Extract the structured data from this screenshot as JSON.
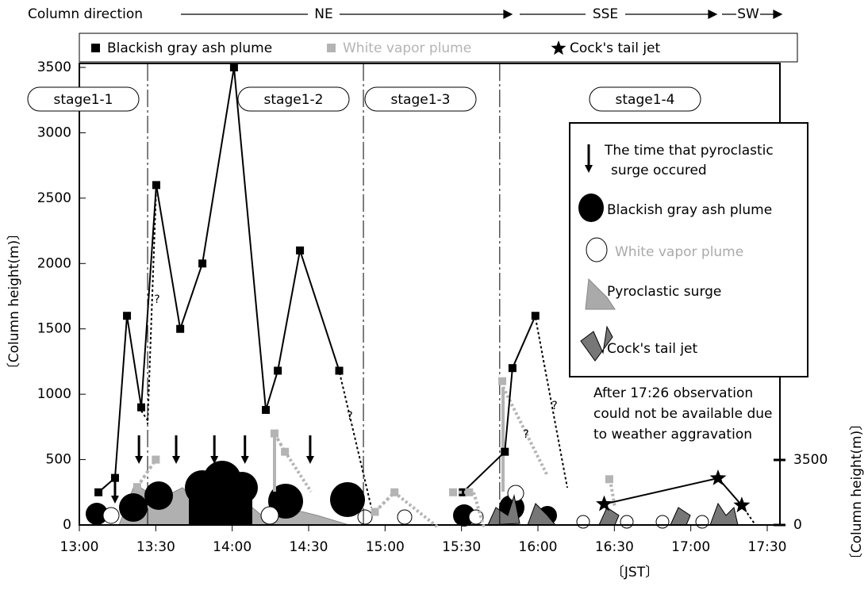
{
  "chart_data": {
    "type": "line",
    "top_label": "Column direction",
    "directions": [
      "NE",
      "SSE",
      "SW"
    ],
    "x_label": "〔JST〕",
    "y_label": "〔Column height(m)〕",
    "y2_label": "〔Column height(m)〕",
    "xlim": [
      0,
      270
    ],
    "xticks": [
      {
        "value": 0,
        "label": "13:00"
      },
      {
        "value": 30,
        "label": "13:30"
      },
      {
        "value": 60,
        "label": "14:00"
      },
      {
        "value": 90,
        "label": "14:30"
      },
      {
        "value": 120,
        "label": "15:00"
      },
      {
        "value": 150,
        "label": "15:30"
      },
      {
        "value": 180,
        "label": "16:00"
      },
      {
        "value": 210,
        "label": "16:30"
      },
      {
        "value": 240,
        "label": "17:00"
      },
      {
        "value": 270,
        "label": "17:30"
      }
    ],
    "ylim": [
      0,
      3500
    ],
    "yticks": [
      0,
      500,
      1000,
      1500,
      2000,
      2500,
      3000,
      3500
    ],
    "y2lim": [
      0,
      3500
    ],
    "y2ticks": [
      0,
      3500
    ],
    "series": [
      {
        "name": "Blackish gray ash plume",
        "color": "#000000",
        "x": [
          7.5,
          14,
          18.7,
          24.3,
          30.2,
          39.6,
          48.3,
          60.7,
          73.2,
          77.9,
          86.6,
          102,
          null,
          150.5,
          167,
          170,
          179
        ],
        "values": [
          250,
          360,
          1600,
          900,
          2600,
          1500,
          2000,
          3500,
          880,
          1180,
          2100,
          1180,
          null,
          250,
          560,
          1200,
          1600
        ]
      },
      {
        "name": "White vapor plume",
        "color": "#b4b4b4",
        "x": [
          22.7,
          30,
          null,
          76.6,
          80.7,
          null,
          116,
          123.7,
          null,
          146.7,
          153,
          null,
          166,
          null,
          208
        ],
        "values": [
          290,
          500,
          null,
          700,
          560,
          null,
          100,
          250,
          null,
          250,
          250,
          null,
          1100,
          null,
          350
        ]
      },
      {
        "name": "Cock's tail jet",
        "color": "#000000",
        "x": [
          206,
          250.7,
          260
        ],
        "values": [
          160,
          358,
          150
        ]
      }
    ],
    "surge_times": [
      14,
      23.4,
      38,
      53,
      65,
      90.6
    ],
    "stage_boundaries": [
      26.8,
      111.5,
      165
    ],
    "stages": [
      "stage1-1",
      "stage1-2",
      "stage1-3",
      "stage1-4"
    ],
    "question_marks": [
      "?",
      "?",
      "?",
      "?"
    ],
    "legend2": [
      {
        "lines": [
          "The time that pyroclastic",
          "surge occured"
        ]
      },
      {
        "lines": [
          "Blackish gray ash plume"
        ]
      },
      {
        "lines": [
          "White vapor plume"
        ]
      },
      {
        "lines": [
          "Pyroclastic surge"
        ]
      },
      {
        "lines": [
          "Cock's tail jet"
        ]
      }
    ],
    "note": [
      "After 17:26 observation",
      "could not be available due",
      "to weather aggravation"
    ]
  }
}
